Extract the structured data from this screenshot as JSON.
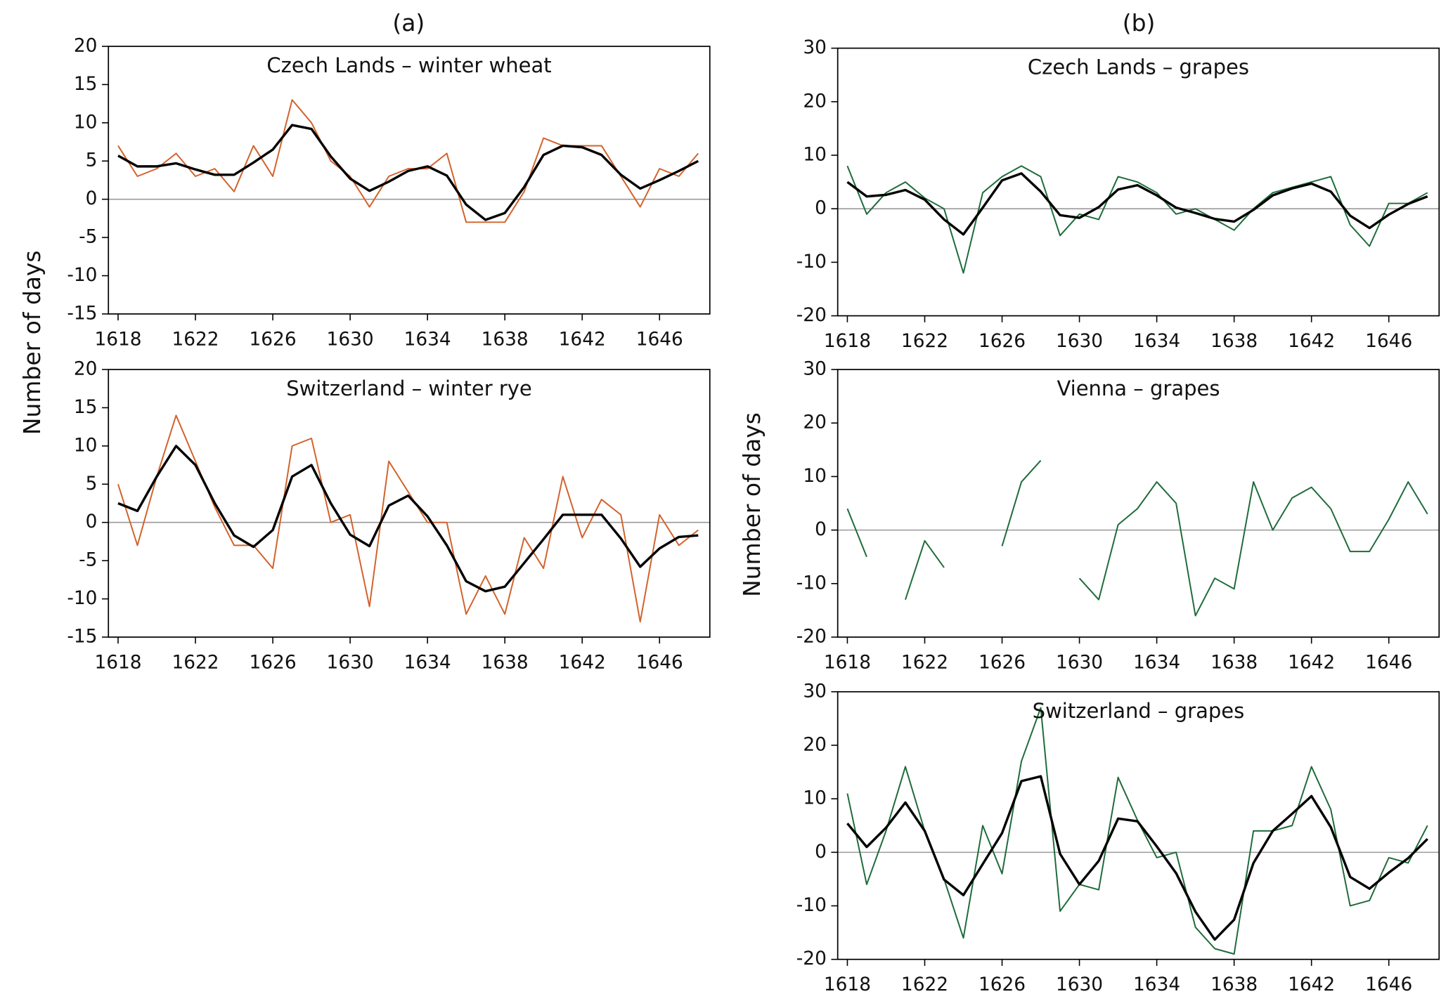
{
  "column_labels": [
    "(a)",
    "(b)"
  ],
  "y_label": "Number of days",
  "chart_data": [
    {
      "type": "line",
      "title": "Czech Lands – winter wheat",
      "x": [
        1618,
        1619,
        1620,
        1621,
        1622,
        1623,
        1624,
        1625,
        1626,
        1627,
        1628,
        1629,
        1630,
        1631,
        1632,
        1633,
        1634,
        1635,
        1636,
        1637,
        1638,
        1639,
        1640,
        1641,
        1642,
        1643,
        1644,
        1645,
        1646,
        1647,
        1648
      ],
      "xlim": [
        1617.5,
        1648.6
      ],
      "xticks": [
        1618,
        1622,
        1626,
        1630,
        1634,
        1638,
        1642,
        1646
      ],
      "ylim": [
        -15,
        20
      ],
      "yticks": [
        -15,
        -10,
        -5,
        0,
        5,
        10,
        15,
        20
      ],
      "hline": 0,
      "series": [
        {
          "color": "#d2622a",
          "values": [
            7,
            3,
            4,
            6,
            3,
            4,
            1,
            7,
            3,
            13,
            10,
            5,
            3,
            -1,
            3,
            4,
            4,
            6,
            -3,
            -3,
            -3,
            1,
            8,
            7,
            7,
            7,
            3,
            -1,
            4,
            3,
            6
          ]
        },
        {
          "color": "#000000",
          "values": [
            5.7,
            4.3,
            4.3,
            4.7,
            3.9,
            3.2,
            3.2,
            4.8,
            6.5,
            9.7,
            9.2,
            5.6,
            2.7,
            1.1,
            2.3,
            3.7,
            4.3,
            3.1,
            -0.7,
            -2.7,
            -1.8,
            1.6,
            5.8,
            7,
            6.8,
            5.8,
            3.2,
            1.4,
            2.5,
            3.7,
            5
          ]
        }
      ]
    },
    {
      "type": "line",
      "title": "Switzerland – winter rye",
      "x": [
        1618,
        1619,
        1620,
        1621,
        1622,
        1623,
        1624,
        1625,
        1626,
        1627,
        1628,
        1629,
        1630,
        1631,
        1632,
        1633,
        1634,
        1635,
        1636,
        1637,
        1638,
        1639,
        1640,
        1641,
        1642,
        1643,
        1644,
        1645,
        1646,
        1647,
        1648
      ],
      "xlim": [
        1617.5,
        1648.6
      ],
      "xticks": [
        1618,
        1622,
        1626,
        1630,
        1634,
        1638,
        1642,
        1646
      ],
      "ylim": [
        -15,
        20
      ],
      "yticks": [
        -15,
        -10,
        -5,
        0,
        5,
        10,
        15,
        20
      ],
      "hline": 0,
      "series": [
        {
          "color": "#d2622a",
          "values": [
            5,
            -3,
            6,
            14,
            8,
            2,
            -3,
            -3,
            -6,
            10,
            11,
            0,
            1,
            -11,
            8,
            4,
            0,
            0,
            -12,
            -7,
            -12,
            -2,
            -6,
            6,
            -2,
            3,
            1,
            -13,
            1,
            -3,
            -1
          ]
        },
        {
          "color": "#000000",
          "values": [
            2.5,
            1.5,
            6,
            10,
            7.5,
            2.5,
            -1.7,
            -3.2,
            -1,
            6,
            7.5,
            2.5,
            -1.6,
            -3.1,
            2.2,
            3.5,
            0.8,
            -3,
            -7.7,
            -9,
            -8.4,
            -5.3,
            -2.2,
            1,
            1,
            1,
            -2.1,
            -5.8,
            -3.4,
            -1.9,
            -1.7
          ]
        }
      ]
    },
    {
      "type": "line",
      "title": "Czech Lands – grapes",
      "x": [
        1618,
        1619,
        1620,
        1621,
        1622,
        1623,
        1624,
        1625,
        1626,
        1627,
        1628,
        1629,
        1630,
        1631,
        1632,
        1633,
        1634,
        1635,
        1636,
        1637,
        1638,
        1639,
        1640,
        1641,
        1642,
        1643,
        1644,
        1645,
        1646,
        1647,
        1648
      ],
      "xlim": [
        1617.5,
        1648.6
      ],
      "xticks": [
        1618,
        1622,
        1626,
        1630,
        1634,
        1638,
        1642,
        1646
      ],
      "ylim": [
        -20,
        30
      ],
      "yticks": [
        -20,
        -10,
        0,
        10,
        20,
        30
      ],
      "hline": 0,
      "series": [
        {
          "color": "#1e6b3a",
          "values": [
            8,
            -1,
            3,
            5,
            2,
            0,
            -12,
            3,
            6,
            8,
            6,
            -5,
            -1,
            -2,
            6,
            5,
            3,
            -1,
            0,
            -2,
            -4,
            0,
            3,
            4,
            5,
            6,
            -3,
            -7,
            1,
            1,
            3
          ]
        },
        {
          "color": "#000000",
          "values": [
            5,
            2.3,
            2.6,
            3.5,
            1.7,
            -2,
            -4.8,
            0.2,
            5.3,
            6.6,
            3.2,
            -1.2,
            -1.7,
            0.3,
            3.6,
            4.4,
            2.5,
            0.2,
            -0.8,
            -1.9,
            -2.4,
            -0.2,
            2.5,
            3.8,
            4.7,
            3.2,
            -1.3,
            -3.6,
            -1.1,
            0.9,
            2.3
          ]
        }
      ]
    },
    {
      "type": "line",
      "title": "Vienna – grapes",
      "x": [
        1618,
        1619,
        1620,
        1621,
        1622,
        1623,
        1624,
        1625,
        1626,
        1627,
        1628,
        1629,
        1630,
        1631,
        1632,
        1633,
        1634,
        1635,
        1636,
        1637,
        1638,
        1639,
        1640,
        1641,
        1642,
        1643,
        1644,
        1645,
        1646,
        1647,
        1648
      ],
      "xlim": [
        1617.5,
        1648.6
      ],
      "xticks": [
        1618,
        1622,
        1626,
        1630,
        1634,
        1638,
        1642,
        1646
      ],
      "ylim": [
        -20,
        30
      ],
      "yticks": [
        -20,
        -10,
        0,
        10,
        20,
        30
      ],
      "hline": 0,
      "series": [
        {
          "color": "#1e6b3a",
          "values": [
            4,
            -5,
            null,
            -13,
            -2,
            -7,
            null,
            null,
            -3,
            9,
            13,
            null,
            -9,
            -13,
            1,
            4,
            9,
            5,
            -16,
            -9,
            -11,
            9,
            0,
            6,
            8,
            4,
            -4,
            -4,
            2,
            9,
            3
          ]
        }
      ]
    },
    {
      "type": "line",
      "title": "Switzerland – grapes",
      "x": [
        1618,
        1619,
        1620,
        1621,
        1622,
        1623,
        1624,
        1625,
        1626,
        1627,
        1628,
        1629,
        1630,
        1631,
        1632,
        1633,
        1634,
        1635,
        1636,
        1637,
        1638,
        1639,
        1640,
        1641,
        1642,
        1643,
        1644,
        1645,
        1646,
        1647,
        1648
      ],
      "xlim": [
        1617.5,
        1648.6
      ],
      "xticks": [
        1618,
        1622,
        1626,
        1630,
        1634,
        1638,
        1642,
        1646
      ],
      "ylim": [
        -20,
        30
      ],
      "yticks": [
        -20,
        -10,
        0,
        10,
        20,
        30
      ],
      "hline": 0,
      "series": [
        {
          "color": "#1e6b3a",
          "values": [
            11,
            -6,
            4,
            16,
            4,
            -5,
            -16,
            5,
            -4,
            17,
            27,
            -11,
            -6,
            -7,
            14,
            6,
            -1,
            0,
            -14,
            -18,
            -19,
            4,
            4,
            5,
            16,
            8,
            -10,
            -9,
            -1,
            -2,
            5
          ]
        },
        {
          "color": "#000000",
          "values": [
            5.4,
            1,
            4.6,
            9.3,
            4,
            -5.1,
            -8,
            -2.2,
            3.6,
            13.3,
            14.2,
            -0.3,
            -6,
            -1.6,
            6.3,
            5.8,
            1.1,
            -3.9,
            -11.1,
            -16.3,
            -12.6,
            -2,
            4,
            7.2,
            10.5,
            4.7,
            -4.6,
            -6.8,
            -3.8,
            -1.1,
            2.5
          ]
        }
      ]
    }
  ]
}
